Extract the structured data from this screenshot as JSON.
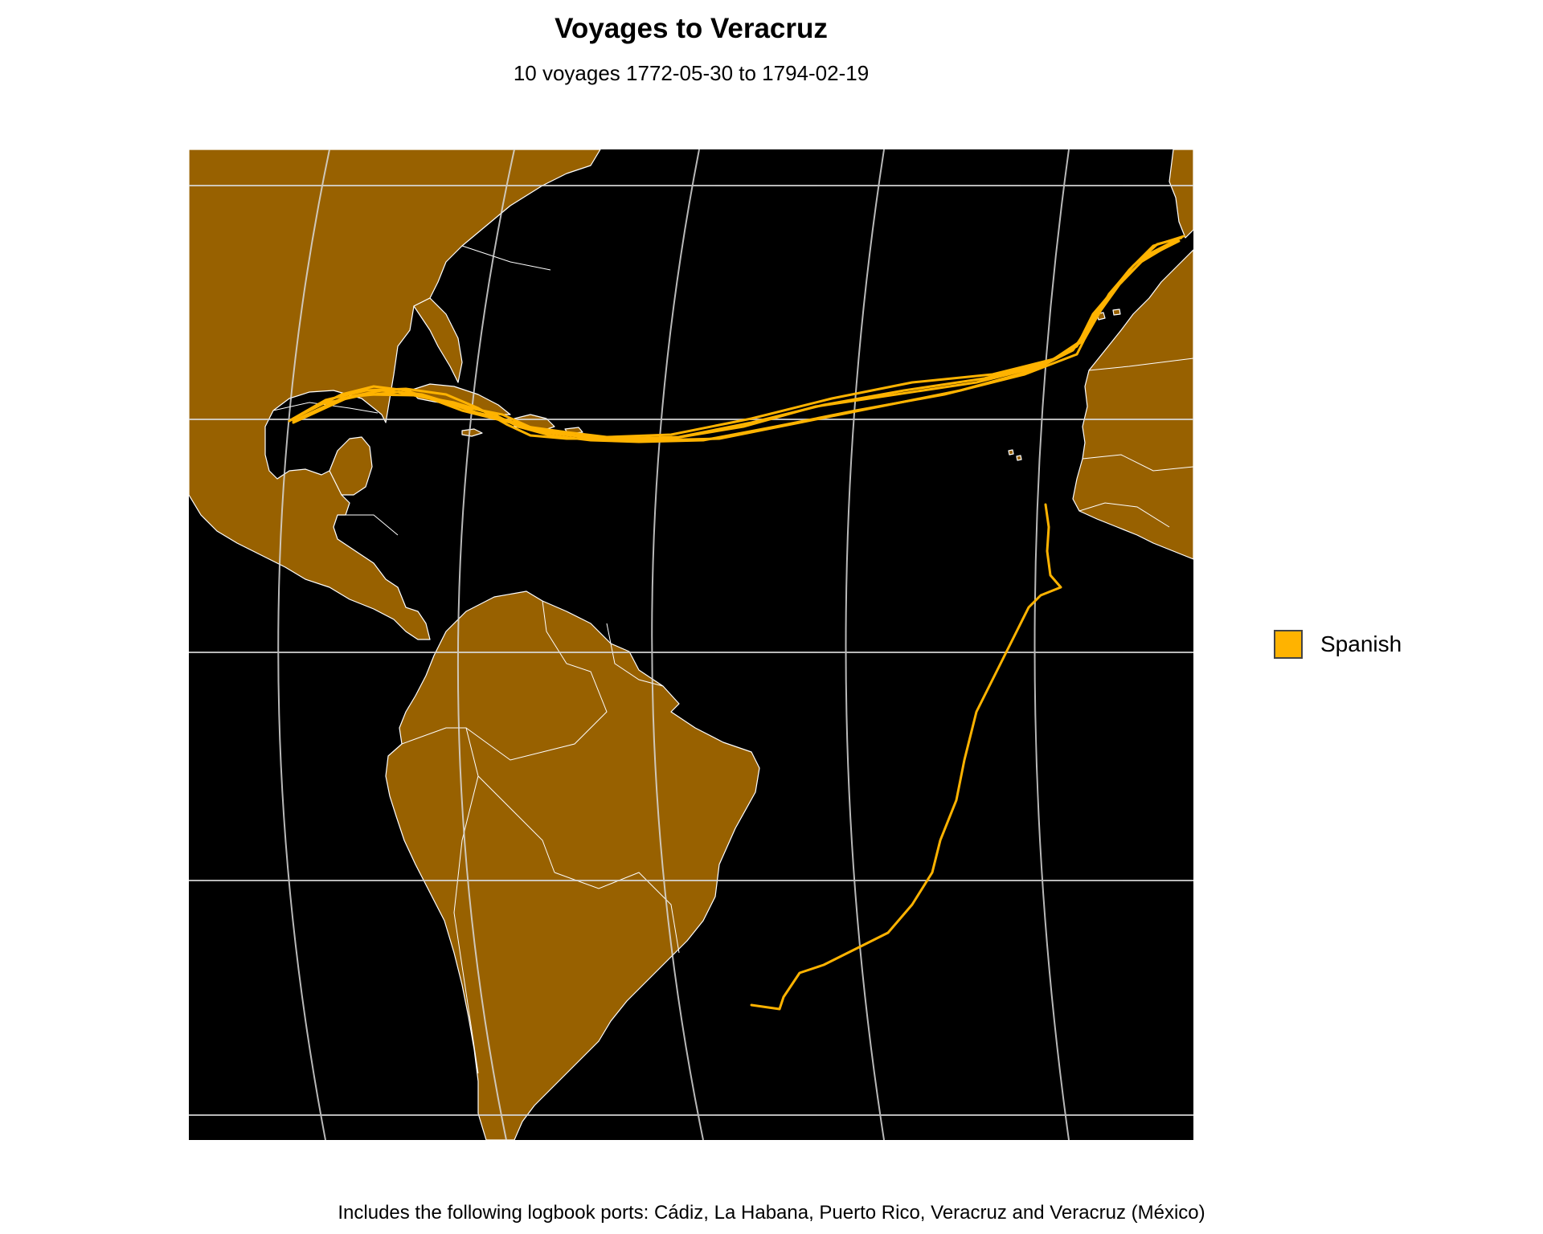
{
  "title": "Voyages to Veracruz",
  "subtitle": "10 voyages 1772-05-30 to 1794-02-19",
  "caption": "Includes the following logbook ports: Cádiz, La Habana, Puerto Rico, Veracruz and Veracruz (México)",
  "legend": {
    "entries": [
      {
        "label": "Spanish",
        "color": "#FFB300"
      }
    ]
  },
  "colors": {
    "ocean": "#000000",
    "land": "#986100",
    "border": "#ffffff",
    "graticule": "#d9d9d9",
    "track": "#FFB300"
  }
}
